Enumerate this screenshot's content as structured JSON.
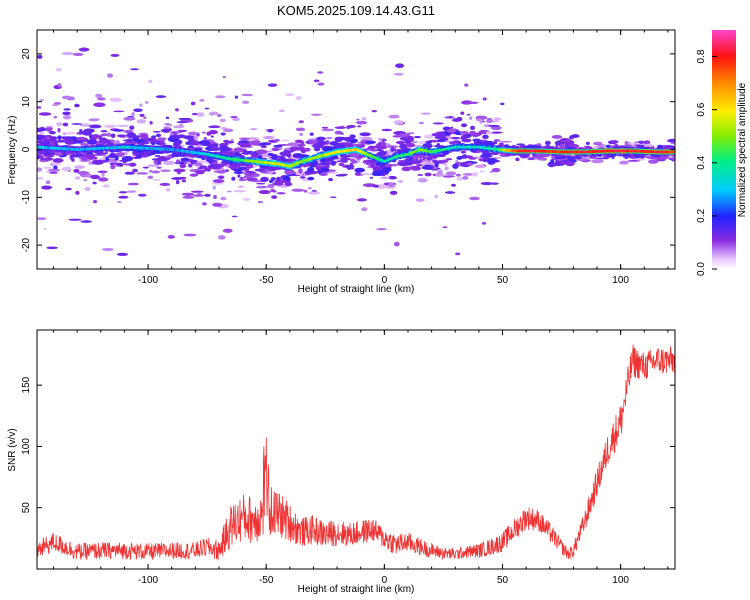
{
  "title": "KOM5.2025.109.14.43.G11",
  "chart_data": [
    {
      "type": "heatmap",
      "xlabel": "Height of straight line (km)",
      "ylabel": "Frequency (Hz)",
      "xlim": [
        -147,
        123
      ],
      "ylim": [
        -25,
        25
      ],
      "xticks": [
        -100,
        -50,
        0,
        50,
        100
      ],
      "yticks": [
        -20,
        -10,
        0,
        10,
        20
      ],
      "grid": false,
      "ridge": {
        "x": [
          -147,
          -130,
          -110,
          -90,
          -75,
          -65,
          -55,
          -45,
          -40,
          -35,
          -28,
          -20,
          -12,
          -5,
          0,
          5,
          10,
          15,
          20,
          30,
          40,
          48,
          55,
          65,
          75,
          85,
          95,
          105,
          115,
          123
        ],
        "y": [
          0.5,
          0,
          0.5,
          0,
          -1,
          -2,
          -2.5,
          -3,
          -3.5,
          -2.5,
          -1.5,
          -0.5,
          0,
          -1.5,
          -2.5,
          -1.5,
          -1,
          0,
          -0.5,
          0.5,
          0.5,
          0,
          -0.3,
          -0.3,
          -0.5,
          -0.5,
          -0.3,
          -0.3,
          -0.5,
          -0.5
        ],
        "amp": [
          0.35,
          0.3,
          0.35,
          0.3,
          0.35,
          0.45,
          0.55,
          0.65,
          0.6,
          0.55,
          0.6,
          0.65,
          0.7,
          0.5,
          0.4,
          0.45,
          0.5,
          0.55,
          0.5,
          0.4,
          0.4,
          0.45,
          0.85,
          0.9,
          0.85,
          0.9,
          0.9,
          0.9,
          0.9,
          0.85
        ]
      }
    },
    {
      "type": "line",
      "xlabel": "Height of straight line (km)",
      "ylabel": "SNR (v/v)",
      "xlim": [
        -147,
        123
      ],
      "ylim": [
        0,
        195
      ],
      "xticks": [
        -100,
        -50,
        0,
        50,
        100
      ],
      "yticks": [
        50,
        100,
        150
      ],
      "grid": false,
      "series": [
        {
          "color": "#ee3333",
          "x": [
            -147,
            -140,
            -130,
            -120,
            -110,
            -100,
            -90,
            -80,
            -75,
            -70,
            -65,
            -60,
            -55,
            -50,
            -45,
            -40,
            -35,
            -30,
            -25,
            -20,
            -15,
            -10,
            -5,
            0,
            5,
            10,
            15,
            20,
            25,
            30,
            35,
            40,
            45,
            50,
            55,
            60,
            65,
            70,
            75,
            78,
            80,
            85,
            90,
            95,
            100,
            105,
            110,
            115,
            123
          ],
          "y": [
            15,
            22,
            14,
            15,
            15,
            14,
            15,
            15,
            18,
            15,
            35,
            42,
            40,
            48,
            45,
            38,
            30,
            32,
            28,
            30,
            28,
            30,
            32,
            25,
            20,
            22,
            18,
            15,
            13,
            12,
            14,
            15,
            18,
            22,
            32,
            42,
            40,
            30,
            18,
            12,
            15,
            40,
            70,
            100,
            120,
            170,
            165,
            170,
            170
          ],
          "noise": [
            8,
            8,
            7,
            7,
            7,
            7,
            7,
            7,
            8,
            9,
            18,
            20,
            20,
            22,
            20,
            16,
            12,
            12,
            11,
            11,
            10,
            10,
            10,
            9,
            9,
            8,
            7,
            6,
            5,
            5,
            5,
            6,
            7,
            8,
            9,
            10,
            9,
            8,
            6,
            5,
            6,
            9,
            12,
            14,
            16,
            14,
            12,
            12,
            12
          ]
        }
      ]
    }
  ],
  "colorbar": {
    "label": "Normalized spectral amplitude",
    "ticks": [
      0,
      0.2,
      0.4,
      0.6,
      0.8
    ],
    "tick_labels": [
      "0.0",
      "0.2",
      "0.4",
      "0.6",
      "0.8"
    ],
    "range": [
      0,
      0.9
    ]
  }
}
